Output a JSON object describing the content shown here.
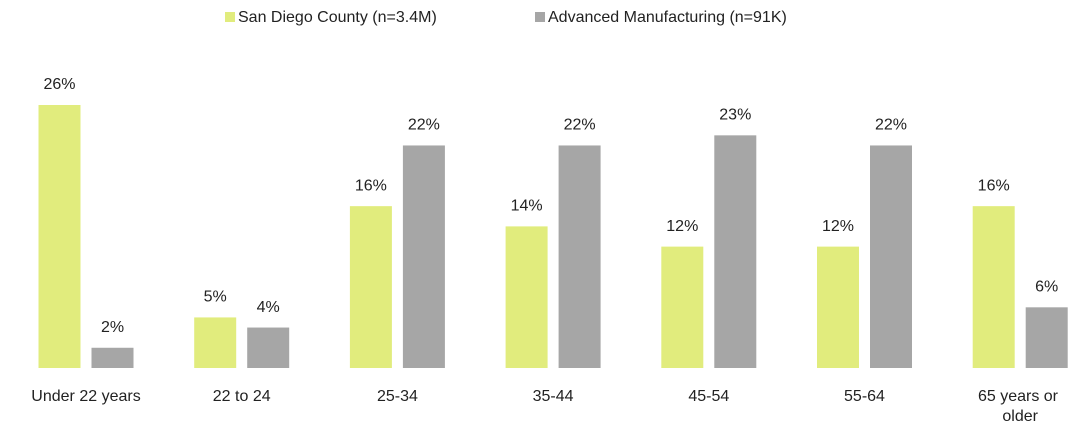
{
  "chart_data": {
    "type": "bar",
    "categories": [
      "Under 22 years",
      "22 to 24",
      "25-34",
      "35-44",
      "45-54",
      "55-64",
      "65 years or older"
    ],
    "series": [
      {
        "name": "San Diego County (n=3.4M)",
        "color": "#e1ec7d",
        "values": [
          26,
          5,
          16,
          14,
          12,
          12,
          16
        ],
        "value_labels": [
          "26%",
          "5%",
          "16%",
          "14%",
          "12%",
          "12%",
          "16%"
        ]
      },
      {
        "name": "Advanced Manufacturing (n=91K)",
        "color": "#a6a6a6",
        "values": [
          2,
          4,
          22,
          22,
          23,
          22,
          6
        ],
        "value_labels": [
          "2%",
          "4%",
          "22%",
          "22%",
          "23%",
          "22%",
          "6%"
        ]
      }
    ],
    "legend": "top"
  }
}
